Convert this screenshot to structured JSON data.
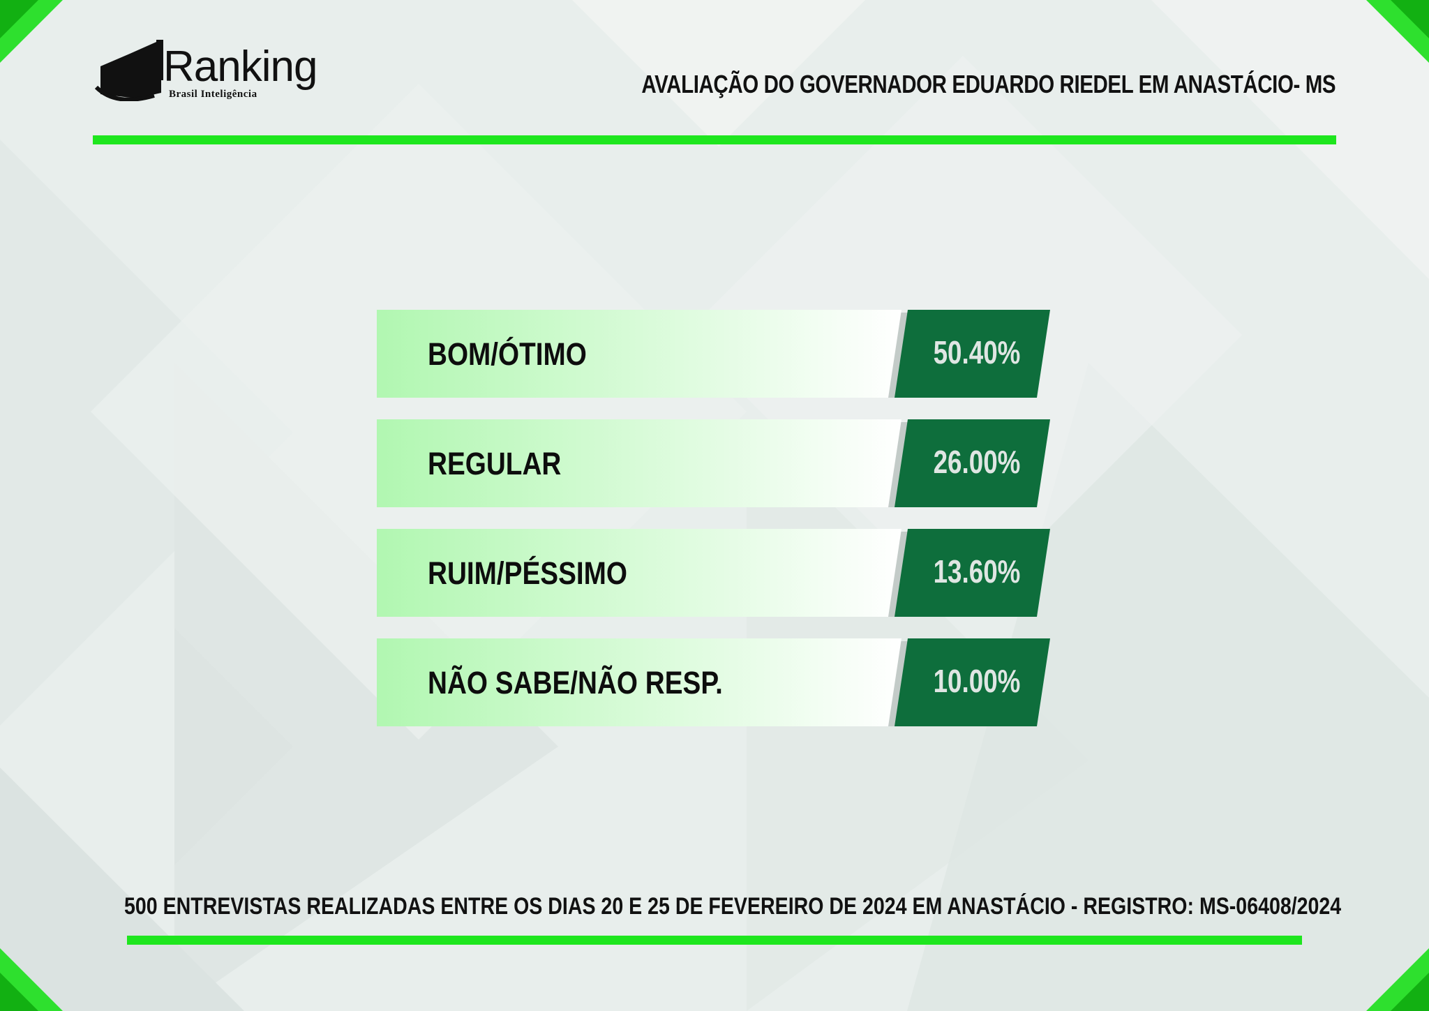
{
  "brand": {
    "name": "Ranking",
    "tagline": "Brasil Inteligência"
  },
  "header": {
    "title": "AVALIAÇÃO DO GOVERNADOR EDUARDO RIEDEL EM ANASTÁCIO- MS"
  },
  "footer": {
    "note": "500 ENTREVISTAS REALIZADAS ENTRE OS DIAS 20 E 25 DE FEVEREIRO DE 2024 EM ANASTÁCIO - REGISTRO: MS-06408/2024"
  },
  "colors": {
    "accent_green": "#1ee61e",
    "value_box": "#0e6e3c",
    "bar_light": "#b1f7b1",
    "bar_fade": "#ffffff"
  },
  "chart_data": {
    "type": "bar",
    "categories": [
      "BOM/ÓTIMO",
      "REGULAR",
      "RUIM/PÉSSIMO",
      "NÃO SABE/NÃO RESP."
    ],
    "values": [
      50.4,
      26.0,
      13.6,
      10.0
    ],
    "value_labels": [
      "50.40%",
      "26.00%",
      "13.60%",
      "10.00%"
    ],
    "unit": "%"
  }
}
